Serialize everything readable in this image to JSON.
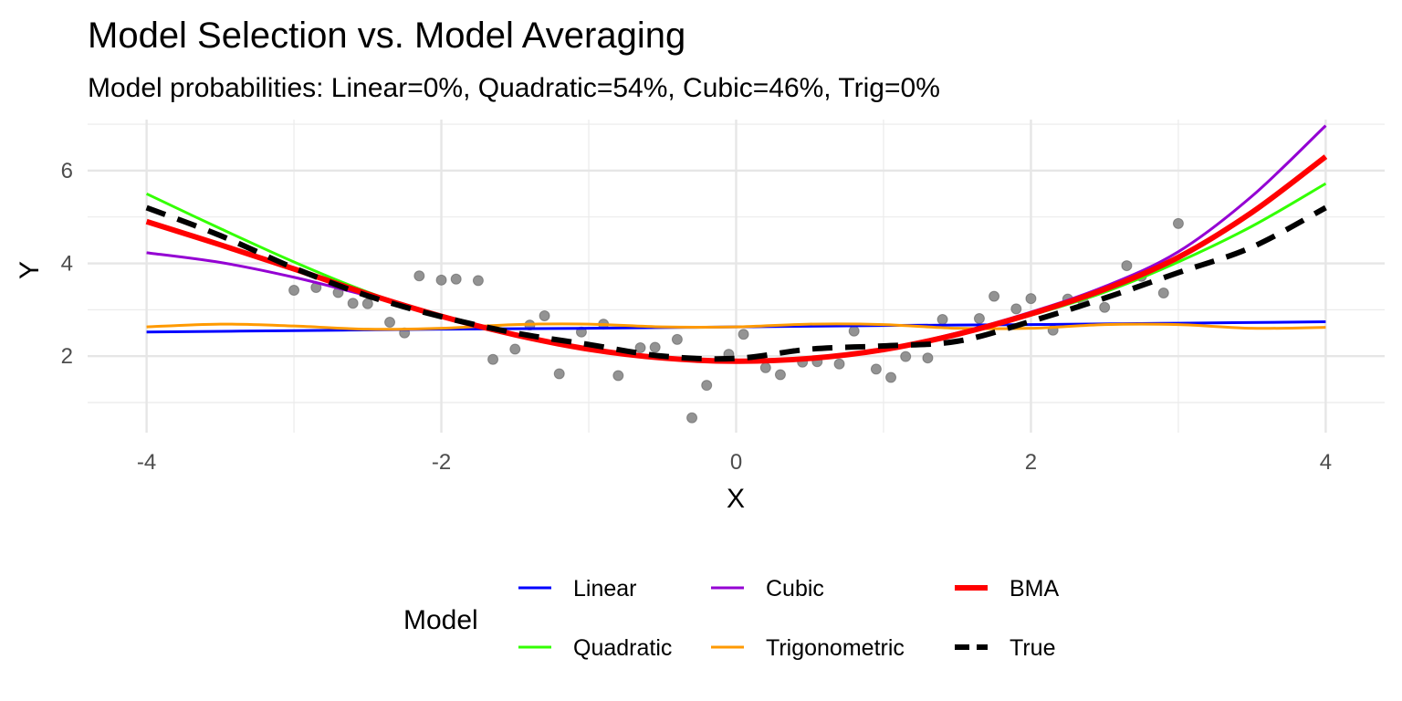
{
  "chart_data": {
    "type": "line",
    "title": "Model Selection vs. Model Averaging",
    "subtitle": "Model probabilities: Linear=0%, Quadratic=54%, Cubic=46%, Trig=0%",
    "xlabel": "X",
    "ylabel": "Y",
    "xlim": [
      -4.4,
      4.4
    ],
    "ylim": [
      0.35,
      7.1
    ],
    "x_ticks": [
      -4,
      -2,
      0,
      2,
      4
    ],
    "y_ticks": [
      2,
      4,
      6
    ],
    "x_tick_labels": [
      "-4",
      "-2",
      "0",
      "2",
      "4"
    ],
    "y_tick_labels": [
      "2",
      "4",
      "6"
    ],
    "grid": true,
    "legend_title": "Model",
    "legend_position": "bottom",
    "points": {
      "color": "#808080",
      "x": [
        -3.0,
        -2.85,
        -2.7,
        -2.6,
        -2.5,
        -2.35,
        -2.25,
        -2.15,
        -2.0,
        -1.9,
        -1.75,
        -1.65,
        -1.5,
        -1.4,
        -1.3,
        -1.2,
        -1.05,
        -0.9,
        -0.8,
        -0.65,
        -0.55,
        -0.4,
        -0.3,
        -0.2,
        -0.05,
        0.05,
        0.2,
        0.3,
        0.45,
        0.55,
        0.7,
        0.8,
        0.95,
        1.05,
        1.15,
        1.3,
        1.4,
        1.65,
        1.75,
        1.9,
        2.0,
        2.15,
        2.25,
        2.35,
        2.5,
        2.65,
        2.75,
        2.9,
        3.0
      ],
      "y": [
        3.42,
        3.48,
        3.37,
        3.14,
        3.13,
        2.73,
        2.5,
        3.73,
        3.64,
        3.66,
        3.63,
        1.93,
        2.15,
        2.67,
        2.87,
        1.62,
        2.52,
        2.69,
        1.58,
        2.18,
        2.19,
        2.36,
        0.67,
        1.37,
        2.04,
        2.47,
        1.75,
        1.6,
        1.87,
        1.88,
        1.83,
        2.54,
        1.72,
        1.54,
        1.99,
        1.96,
        2.79,
        2.81,
        3.29,
        3.02,
        3.24,
        2.56,
        3.23,
        3.2,
        3.05,
        3.95,
        3.72,
        3.36,
        4.86
      ]
    },
    "series": [
      {
        "name": "Linear",
        "color": "#0000ff",
        "width": 3,
        "dash": "none",
        "x": [
          -4,
          -3,
          -2,
          -1,
          0,
          1,
          2,
          3,
          4
        ],
        "y": [
          2.52,
          2.55,
          2.58,
          2.6,
          2.63,
          2.66,
          2.68,
          2.71,
          2.74
        ]
      },
      {
        "name": "Quadratic",
        "color": "#33ff00",
        "width": 3,
        "dash": "none",
        "x": [
          -4,
          -3.5,
          -3,
          -2.5,
          -2,
          -1.5,
          -1,
          -0.5,
          0,
          0.5,
          1,
          1.5,
          2,
          2.5,
          3,
          3.5,
          4
        ],
        "y": [
          5.5,
          4.75,
          4.03,
          3.38,
          2.85,
          2.45,
          2.13,
          1.94,
          1.88,
          1.94,
          2.13,
          2.45,
          2.88,
          3.38,
          4.03,
          4.8,
          5.72
        ]
      },
      {
        "name": "Cubic",
        "color": "#9400d3",
        "width": 3,
        "dash": "none",
        "x": [
          -4,
          -3.5,
          -3,
          -2.5,
          -2,
          -1.5,
          -1,
          -0.5,
          0,
          0.5,
          1,
          1.5,
          2,
          2.5,
          3,
          3.5,
          4
        ],
        "y": [
          4.23,
          4.02,
          3.7,
          3.3,
          2.88,
          2.48,
          2.17,
          1.98,
          1.9,
          1.96,
          2.16,
          2.5,
          2.95,
          3.5,
          4.25,
          5.45,
          6.97
        ]
      },
      {
        "name": "Trigonometric",
        "color": "#ff9a00",
        "width": 3,
        "dash": "none",
        "x": [
          -4,
          -3.5,
          -3,
          -2.5,
          -2,
          -1.5,
          -1,
          -0.5,
          0,
          0.5,
          1,
          1.5,
          2,
          2.5,
          3,
          3.5,
          4
        ],
        "y": [
          2.63,
          2.69,
          2.65,
          2.58,
          2.6,
          2.68,
          2.69,
          2.63,
          2.63,
          2.69,
          2.68,
          2.6,
          2.6,
          2.68,
          2.68,
          2.6,
          2.62
        ]
      },
      {
        "name": "BMA",
        "color": "#ff0000",
        "width": 6,
        "dash": "none",
        "x": [
          -4,
          -3.5,
          -3,
          -2.5,
          -2,
          -1.5,
          -1,
          -0.5,
          0,
          0.5,
          1,
          1.5,
          2,
          2.5,
          3,
          3.5,
          4
        ],
        "y": [
          4.9,
          4.4,
          3.88,
          3.34,
          2.86,
          2.46,
          2.15,
          1.96,
          1.89,
          1.95,
          2.14,
          2.47,
          2.91,
          3.44,
          4.13,
          5.1,
          6.3
        ]
      },
      {
        "name": "True",
        "color": "#000000",
        "width": 6,
        "dash": "22,14",
        "x": [
          -4,
          -3.5,
          -3,
          -2.5,
          -2,
          -1.5,
          -1,
          -0.5,
          0,
          0.5,
          1,
          1.5,
          2,
          2.5,
          3,
          3.5,
          4
        ],
        "y": [
          5.2,
          4.6,
          3.9,
          3.3,
          2.85,
          2.5,
          2.25,
          2.0,
          1.95,
          2.15,
          2.22,
          2.32,
          2.75,
          3.25,
          3.8,
          4.35,
          5.2
        ]
      }
    ]
  }
}
